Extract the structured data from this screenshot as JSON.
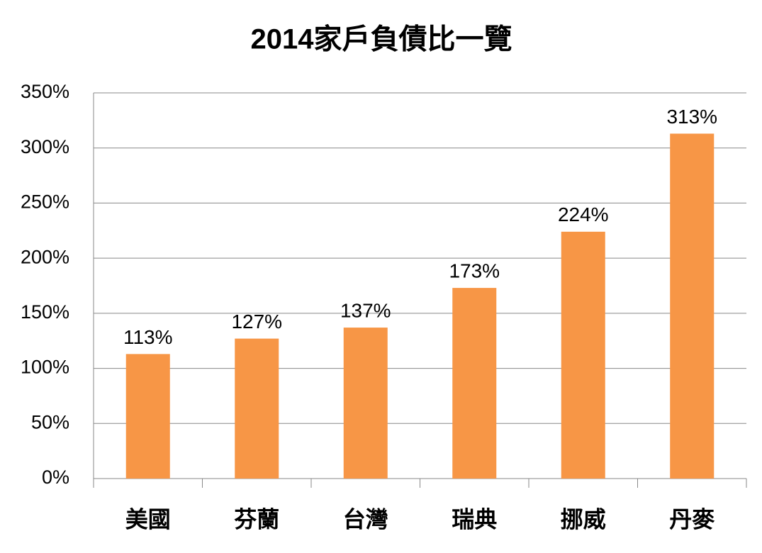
{
  "chart_data": {
    "type": "bar",
    "title": "2014家戶負債比一覽",
    "categories": [
      "美國",
      "芬蘭",
      "台灣",
      "瑞典",
      "挪威",
      "丹麥"
    ],
    "values": [
      113,
      127,
      137,
      173,
      224,
      313
    ],
    "value_labels": [
      "113%",
      "127%",
      "137%",
      "173%",
      "224%",
      "313%"
    ],
    "color": "#f79646",
    "ylim": [
      0,
      350
    ],
    "yticks": [
      {
        "value": 0,
        "label": "0%"
      },
      {
        "value": 50,
        "label": "50%"
      },
      {
        "value": 100,
        "label": "100%"
      },
      {
        "value": 150,
        "label": "150%"
      },
      {
        "value": 200,
        "label": "200%"
      },
      {
        "value": 250,
        "label": "250%"
      },
      {
        "value": 300,
        "label": "300%"
      },
      {
        "value": 350,
        "label": "350%"
      }
    ],
    "grid": true
  }
}
